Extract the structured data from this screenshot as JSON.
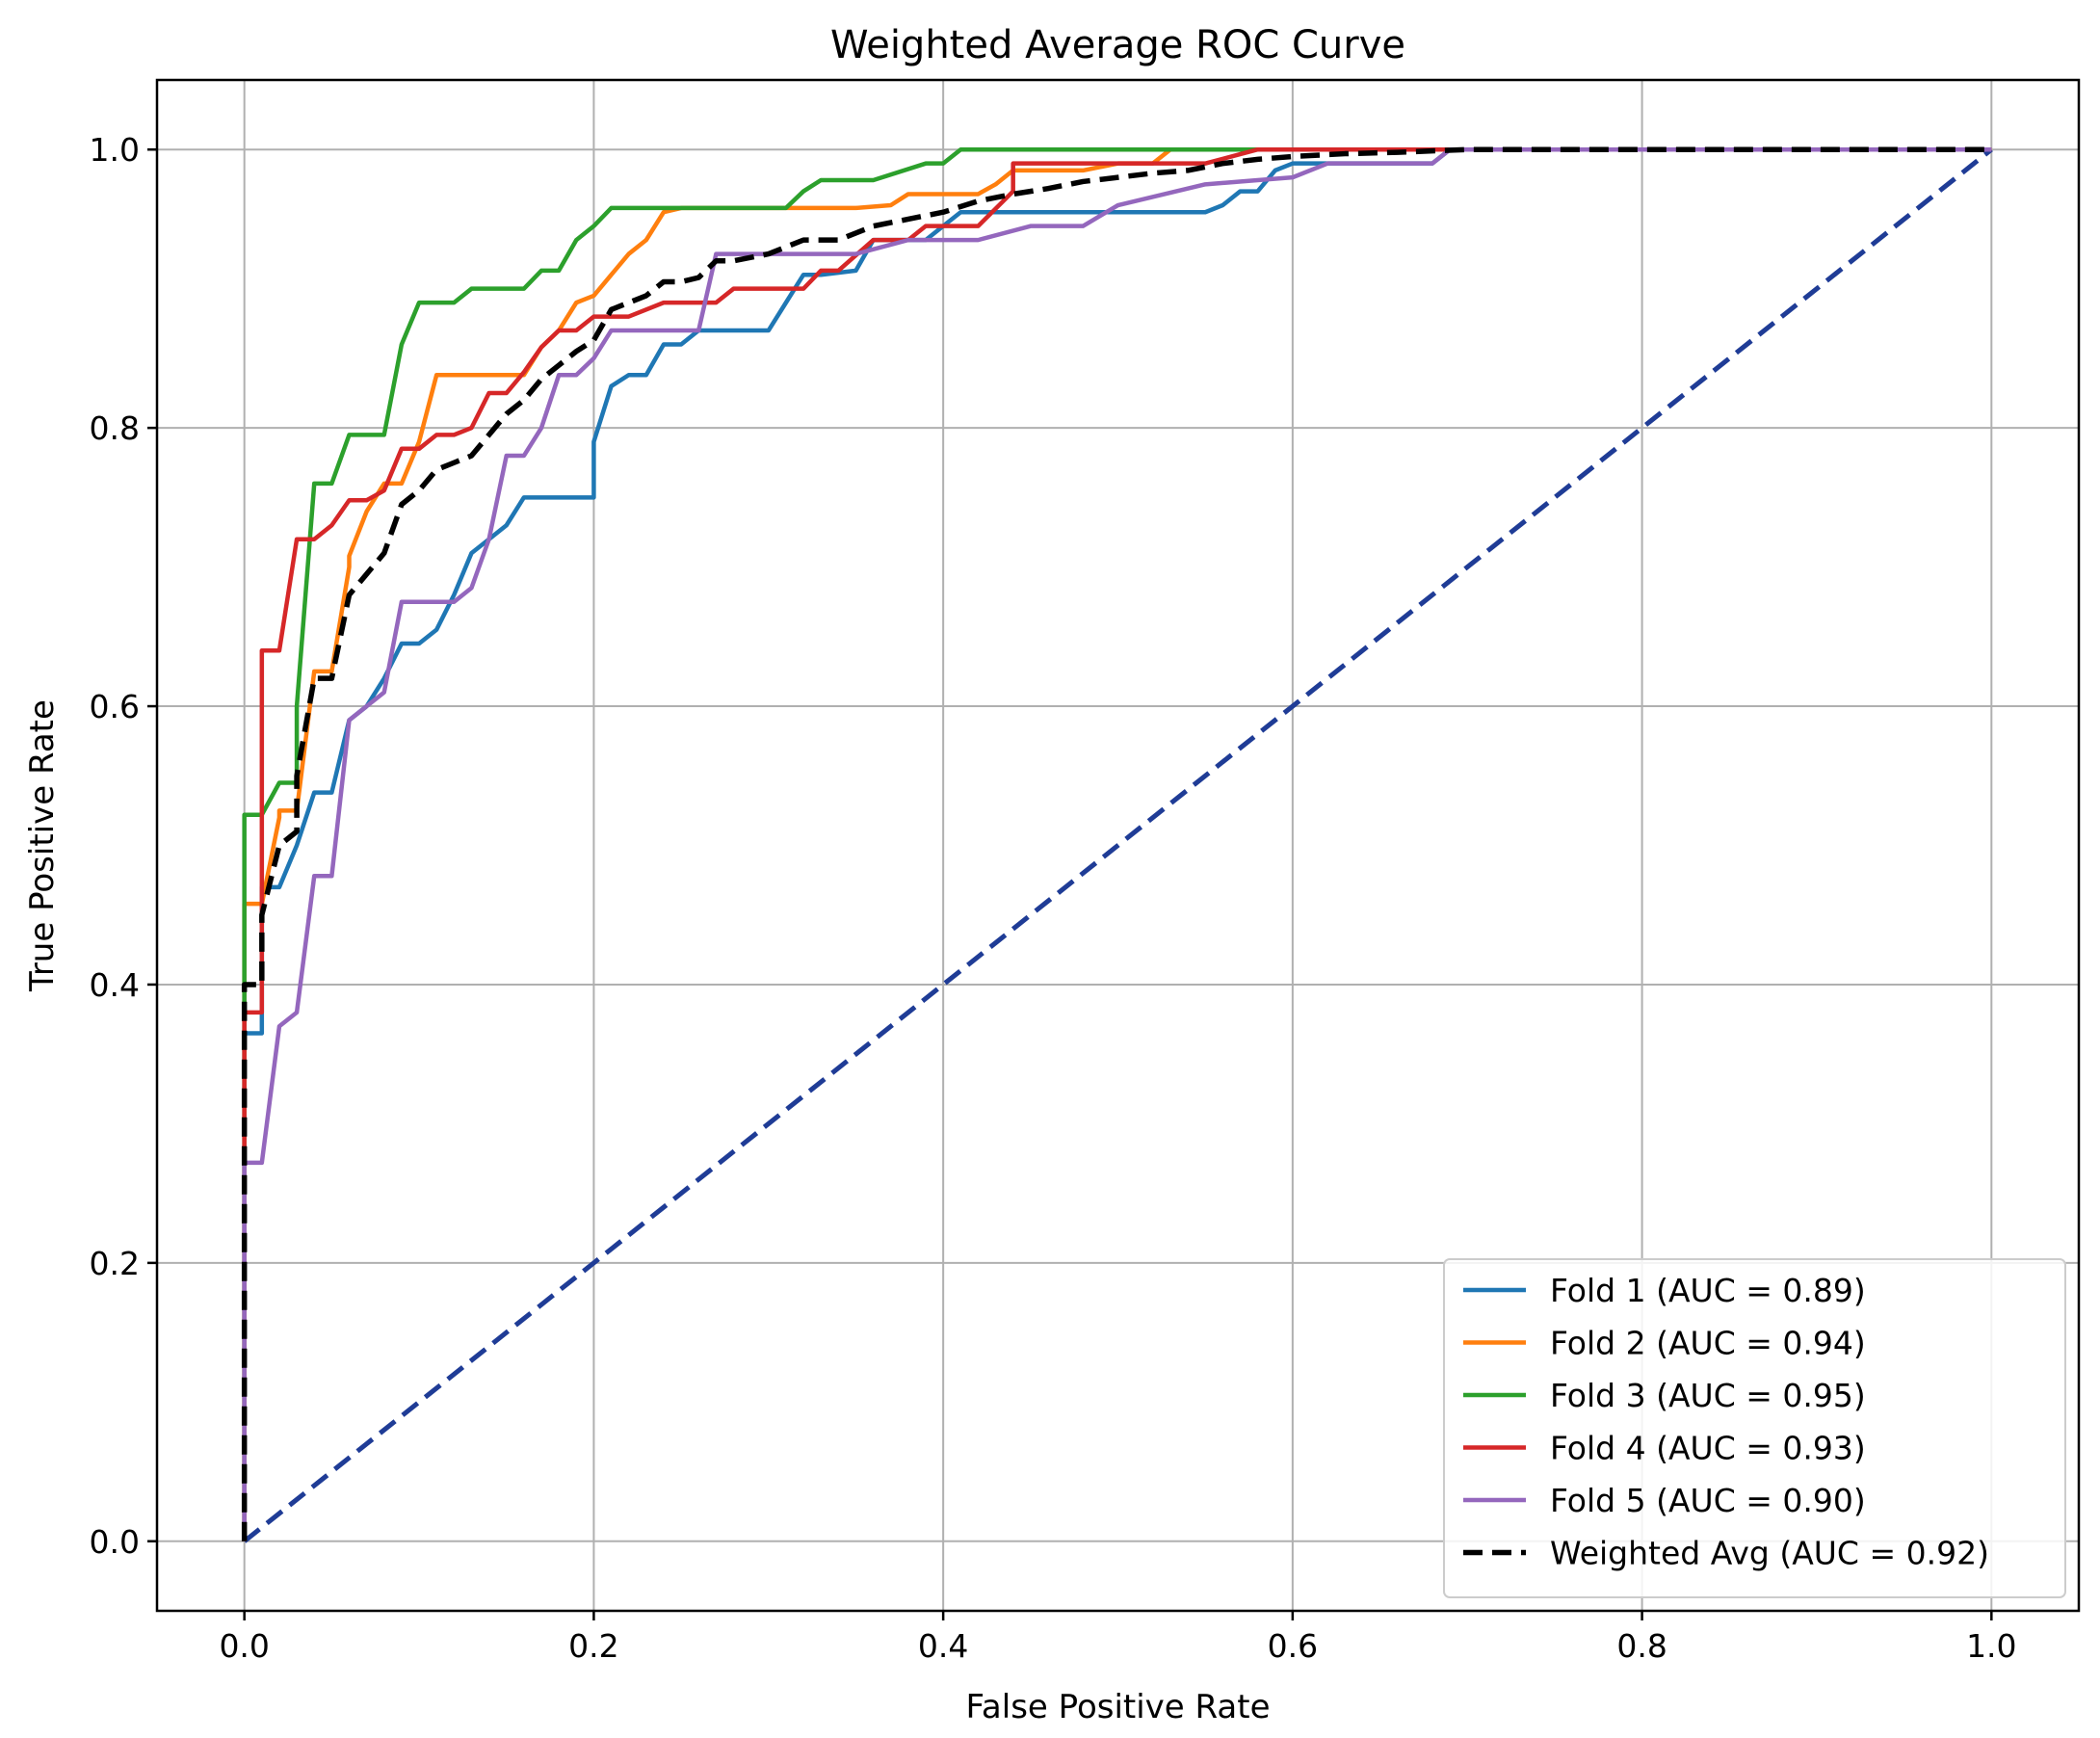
{
  "chart_data": {
    "type": "line",
    "title": "Weighted Average ROC Curve",
    "xlabel": "False Positive Rate",
    "ylabel": "True Positive Rate",
    "xlim": [
      -0.05,
      1.05
    ],
    "ylim": [
      -0.05,
      1.05
    ],
    "xticks": [
      0.0,
      0.2,
      0.4,
      0.6,
      0.8,
      1.0
    ],
    "yticks": [
      0.0,
      0.2,
      0.4,
      0.6,
      0.8,
      1.0
    ],
    "xtick_labels": [
      "0.0",
      "0.2",
      "0.4",
      "0.6",
      "0.8",
      "1.0"
    ],
    "ytick_labels": [
      "0.0",
      "0.2",
      "0.4",
      "0.6",
      "0.8",
      "1.0"
    ],
    "grid": true,
    "legend_position": "lower-right",
    "series": [
      {
        "name": "Fold 1 (AUC = 0.89)",
        "color": "#1f77b4",
        "style": "solid",
        "x": [
          0,
          0,
          0.01,
          0.01,
          0.02,
          0.03,
          0.03,
          0.04,
          0.05,
          0.06,
          0.07,
          0.08,
          0.09,
          0.1,
          0.11,
          0.12,
          0.13,
          0.14,
          0.15,
          0.16,
          0.18,
          0.2,
          0.2,
          0.21,
          0.22,
          0.23,
          0.24,
          0.25,
          0.26,
          0.27,
          0.3,
          0.31,
          0.32,
          0.33,
          0.35,
          0.36,
          0.37,
          0.39,
          0.4,
          0.41,
          0.43,
          0.44,
          0.46,
          0.48,
          0.5,
          0.52,
          0.54,
          0.55,
          0.56,
          0.57,
          0.58,
          0.59,
          0.6,
          0.62,
          0.63,
          0.66,
          0.67,
          0.68,
          0.69,
          1.0
        ],
        "y": [
          0,
          0.365,
          0.365,
          0.47,
          0.47,
          0.5,
          0.5,
          0.538,
          0.538,
          0.59,
          0.6,
          0.62,
          0.645,
          0.645,
          0.655,
          0.68,
          0.71,
          0.72,
          0.73,
          0.75,
          0.75,
          0.75,
          0.79,
          0.83,
          0.838,
          0.838,
          0.86,
          0.86,
          0.87,
          0.87,
          0.87,
          0.89,
          0.91,
          0.91,
          0.913,
          0.935,
          0.935,
          0.935,
          0.945,
          0.955,
          0.955,
          0.955,
          0.955,
          0.955,
          0.955,
          0.955,
          0.955,
          0.955,
          0.96,
          0.97,
          0.97,
          0.985,
          0.99,
          0.99,
          0.99,
          0.99,
          0.99,
          0.99,
          1.0,
          1.0
        ]
      },
      {
        "name": "Fold 2 (AUC = 0.94)",
        "color": "#ff7f0e",
        "style": "solid",
        "x": [
          0,
          0,
          0.01,
          0.02,
          0.02,
          0.03,
          0.04,
          0.05,
          0.06,
          0.06,
          0.07,
          0.08,
          0.09,
          0.1,
          0.11,
          0.12,
          0.13,
          0.14,
          0.15,
          0.16,
          0.17,
          0.18,
          0.19,
          0.2,
          0.21,
          0.22,
          0.23,
          0.24,
          0.25,
          0.28,
          0.3,
          0.32,
          0.35,
          0.37,
          0.38,
          0.4,
          0.42,
          0.43,
          0.44,
          0.45,
          0.48,
          0.5,
          0.52,
          0.53,
          0.55,
          0.57,
          0.6,
          0.65,
          0.7,
          1.0
        ],
        "y": [
          0,
          0.458,
          0.458,
          0.52,
          0.525,
          0.525,
          0.625,
          0.625,
          0.7,
          0.708,
          0.74,
          0.76,
          0.76,
          0.79,
          0.838,
          0.838,
          0.838,
          0.838,
          0.838,
          0.838,
          0.858,
          0.87,
          0.89,
          0.895,
          0.91,
          0.925,
          0.935,
          0.955,
          0.958,
          0.958,
          0.958,
          0.958,
          0.958,
          0.96,
          0.968,
          0.968,
          0.968,
          0.975,
          0.985,
          0.985,
          0.985,
          0.99,
          0.99,
          1.0,
          1.0,
          1.0,
          1.0,
          1.0,
          1.0,
          1.0
        ]
      },
      {
        "name": "Fold 3 (AUC = 0.95)",
        "color": "#2ca02c",
        "style": "solid",
        "x": [
          0,
          0,
          0.01,
          0.02,
          0.03,
          0.03,
          0.04,
          0.05,
          0.06,
          0.08,
          0.09,
          0.1,
          0.12,
          0.13,
          0.14,
          0.16,
          0.17,
          0.18,
          0.19,
          0.2,
          0.21,
          0.22,
          0.25,
          0.28,
          0.31,
          0.32,
          0.33,
          0.36,
          0.39,
          0.4,
          0.41,
          0.42,
          0.45,
          0.5,
          0.55,
          0.56,
          0.6,
          0.65,
          0.7,
          1.0
        ],
        "y": [
          0,
          0.522,
          0.522,
          0.545,
          0.545,
          0.6,
          0.76,
          0.76,
          0.795,
          0.795,
          0.86,
          0.89,
          0.89,
          0.9,
          0.9,
          0.9,
          0.913,
          0.913,
          0.935,
          0.945,
          0.958,
          0.958,
          0.958,
          0.958,
          0.958,
          0.97,
          0.978,
          0.978,
          0.99,
          0.99,
          1.0,
          1.0,
          1.0,
          1.0,
          1.0,
          1.0,
          1.0,
          1.0,
          1.0,
          1.0
        ]
      },
      {
        "name": "Fold 4 (AUC = 0.93)",
        "color": "#d62728",
        "style": "solid",
        "x": [
          0,
          0,
          0.01,
          0.01,
          0.02,
          0.03,
          0.04,
          0.05,
          0.06,
          0.07,
          0.08,
          0.09,
          0.1,
          0.11,
          0.12,
          0.13,
          0.14,
          0.15,
          0.16,
          0.17,
          0.18,
          0.19,
          0.2,
          0.22,
          0.24,
          0.25,
          0.27,
          0.28,
          0.3,
          0.32,
          0.33,
          0.34,
          0.36,
          0.38,
          0.39,
          0.4,
          0.42,
          0.44,
          0.44,
          0.47,
          0.5,
          0.55,
          0.58,
          0.6,
          0.65,
          0.7,
          1.0
        ],
        "y": [
          0,
          0.38,
          0.38,
          0.64,
          0.64,
          0.72,
          0.72,
          0.73,
          0.748,
          0.748,
          0.755,
          0.785,
          0.785,
          0.795,
          0.795,
          0.8,
          0.825,
          0.825,
          0.84,
          0.858,
          0.87,
          0.87,
          0.88,
          0.88,
          0.89,
          0.89,
          0.89,
          0.9,
          0.9,
          0.9,
          0.913,
          0.913,
          0.935,
          0.935,
          0.945,
          0.945,
          0.945,
          0.97,
          0.99,
          0.99,
          0.99,
          0.99,
          1.0,
          1.0,
          1.0,
          1.0,
          1.0
        ]
      },
      {
        "name": "Fold 5 (AUC = 0.90)",
        "color": "#9467bd",
        "style": "solid",
        "x": [
          0,
          0,
          0.01,
          0.02,
          0.02,
          0.03,
          0.04,
          0.05,
          0.06,
          0.07,
          0.08,
          0.09,
          0.1,
          0.11,
          0.12,
          0.13,
          0.14,
          0.15,
          0.16,
          0.17,
          0.18,
          0.19,
          0.2,
          0.21,
          0.22,
          0.23,
          0.24,
          0.26,
          0.27,
          0.3,
          0.35,
          0.38,
          0.42,
          0.45,
          0.48,
          0.5,
          0.55,
          0.58,
          0.6,
          0.62,
          0.65,
          0.68,
          0.69,
          1.0
        ],
        "y": [
          0,
          0.272,
          0.272,
          0.37,
          0.37,
          0.38,
          0.478,
          0.478,
          0.59,
          0.6,
          0.61,
          0.675,
          0.675,
          0.675,
          0.675,
          0.685,
          0.72,
          0.78,
          0.78,
          0.8,
          0.838,
          0.838,
          0.85,
          0.87,
          0.87,
          0.87,
          0.87,
          0.87,
          0.925,
          0.925,
          0.925,
          0.935,
          0.935,
          0.945,
          0.945,
          0.96,
          0.975,
          0.978,
          0.98,
          0.99,
          0.99,
          0.99,
          1.0,
          1.0
        ]
      },
      {
        "name": "Weighted Avg (AUC = 0.92)",
        "color": "#000000",
        "style": "dashed",
        "x": [
          0,
          0,
          0.01,
          0.01,
          0.02,
          0.03,
          0.03,
          0.04,
          0.05,
          0.06,
          0.07,
          0.08,
          0.09,
          0.1,
          0.11,
          0.12,
          0.13,
          0.14,
          0.15,
          0.16,
          0.17,
          0.18,
          0.19,
          0.2,
          0.21,
          0.22,
          0.23,
          0.24,
          0.25,
          0.26,
          0.27,
          0.28,
          0.3,
          0.31,
          0.32,
          0.34,
          0.36,
          0.38,
          0.4,
          0.42,
          0.44,
          0.46,
          0.48,
          0.5,
          0.52,
          0.54,
          0.56,
          0.58,
          0.6,
          0.63,
          0.66,
          0.7,
          1.0
        ],
        "y": [
          0,
          0.4,
          0.4,
          0.45,
          0.5,
          0.51,
          0.55,
          0.62,
          0.62,
          0.68,
          0.695,
          0.71,
          0.745,
          0.755,
          0.77,
          0.775,
          0.78,
          0.795,
          0.81,
          0.82,
          0.835,
          0.845,
          0.855,
          0.863,
          0.885,
          0.89,
          0.895,
          0.905,
          0.905,
          0.908,
          0.92,
          0.92,
          0.925,
          0.93,
          0.935,
          0.935,
          0.945,
          0.95,
          0.955,
          0.963,
          0.968,
          0.972,
          0.977,
          0.98,
          0.983,
          0.985,
          0.99,
          0.993,
          0.995,
          0.997,
          0.998,
          1.0,
          1.0
        ]
      }
    ],
    "reference_line": {
      "color": "#1f3c96",
      "style": "dashed",
      "x": [
        0,
        1
      ],
      "y": [
        0,
        1
      ]
    }
  }
}
